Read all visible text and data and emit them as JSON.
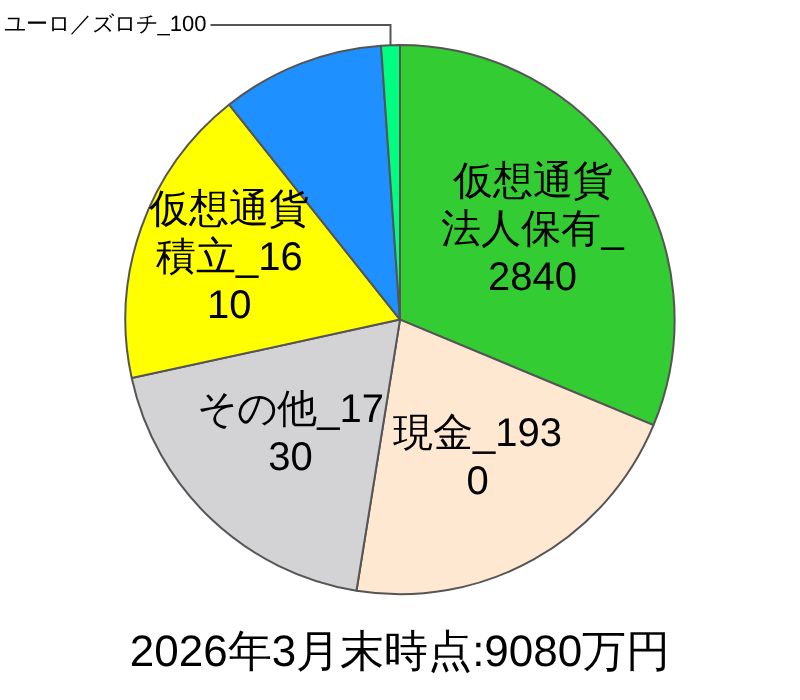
{
  "chart_data": {
    "type": "pie",
    "title": "2026年3月末時点:9080万円",
    "categories": [
      "仮想通貨法人保有_2840",
      "現金_1930",
      "その他_1730",
      "仮想通貨積立_1610",
      null,
      "ユーロ／ズロチ_100"
    ],
    "values": [
      2840,
      1930,
      1730,
      1610,
      870,
      100
    ],
    "colors": [
      "#33cc33",
      "#ffe8d2",
      "#d3d3d6",
      "#ffff00",
      "#1e90ff",
      "#00ff80"
    ],
    "legend": false
  }
}
